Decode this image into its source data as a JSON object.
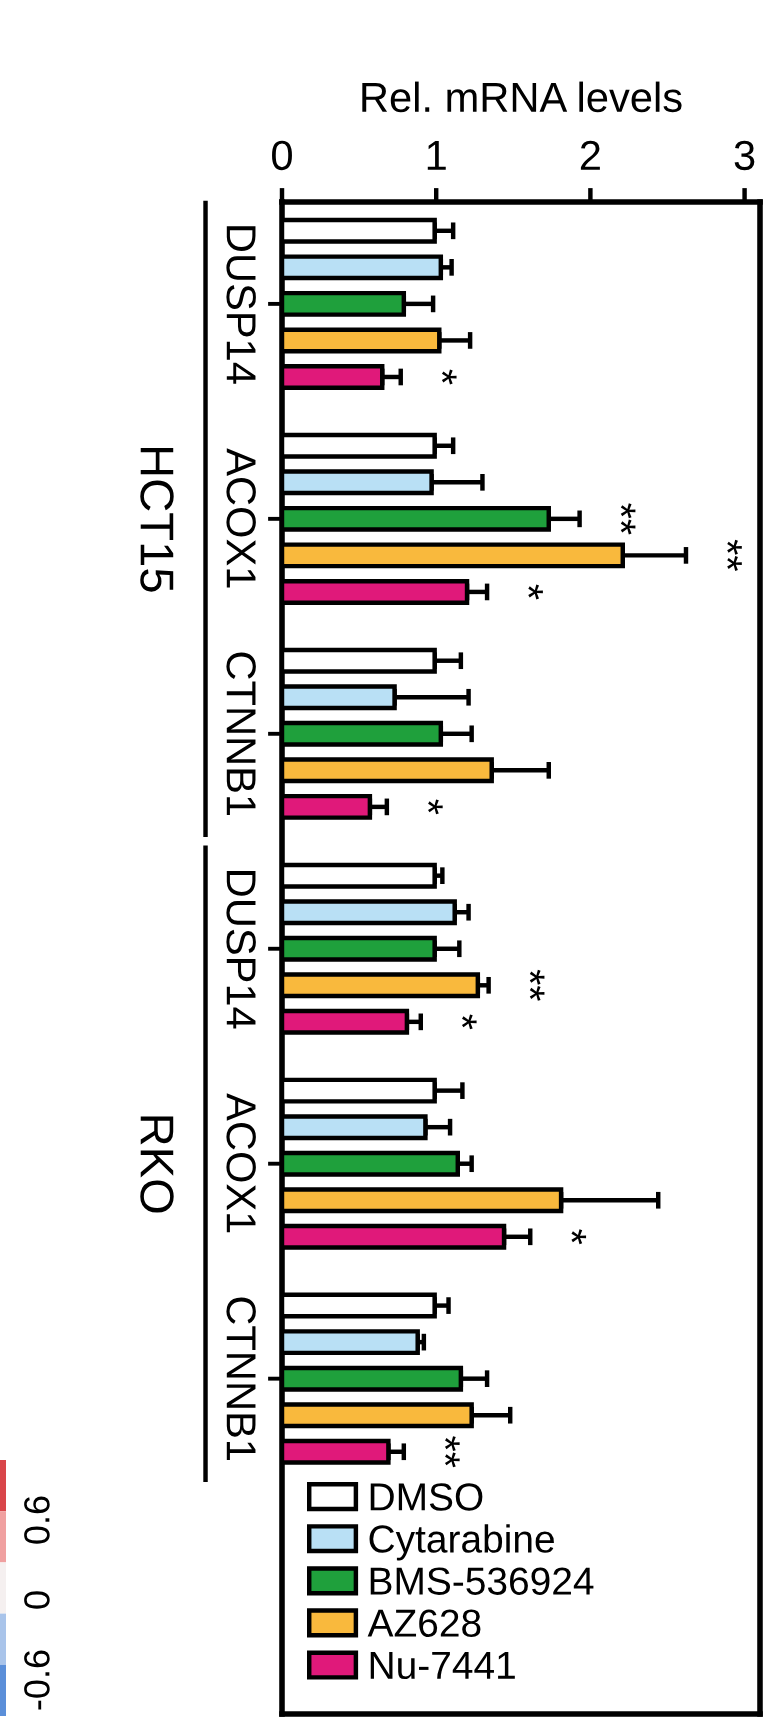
{
  "chart_data": {
    "type": "bar",
    "orientation": "horizontal",
    "xlabel": "Rel. mRNA levels",
    "categories": [
      "DUSP14",
      "ACOX1",
      "CTNNB1",
      "DUSP14",
      "ACOX1",
      "CTNNB1"
    ],
    "xlim": [
      0,
      3.1
    ],
    "xticks": [
      0,
      1,
      2,
      3
    ],
    "grid": false,
    "legend": "bottom left",
    "annotations": [
      "HCT15",
      "RKO",
      "0.6",
      "0",
      "-0.6"
    ],
    "series": [
      {
        "name": "DMSO",
        "color": "#ffffff",
        "values": [
          0.99,
          0.99,
          0.99,
          0.99,
          0.99,
          0.99
        ],
        "errors": [
          [
            0.99,
            1.11
          ],
          [
            0.99,
            1.11
          ],
          [
            0.99,
            1.16
          ],
          [
            0.99,
            1.04
          ],
          [
            0.99,
            1.17
          ],
          [
            0.99,
            1.08
          ]
        ]
      },
      {
        "name": "Cytarabine",
        "color": "#b9e0f5",
        "values": [
          1.03,
          0.97,
          0.73,
          1.12,
          0.93,
          0.88
        ],
        "errors": [
          [
            1.03,
            1.1
          ],
          [
            0.97,
            1.3
          ],
          [
            0.73,
            1.21
          ],
          [
            1.12,
            1.21
          ],
          [
            0.93,
            1.09
          ],
          [
            0.88,
            0.92
          ]
        ]
      },
      {
        "name": "BMS-536924",
        "color": "#1fa03c",
        "values": [
          0.79,
          1.73,
          1.03,
          0.99,
          1.14,
          1.16
        ],
        "errors": [
          [
            0.79,
            0.98
          ],
          [
            1.73,
            1.93
          ],
          [
            1.03,
            1.23
          ],
          [
            0.99,
            1.15
          ],
          [
            1.14,
            1.23
          ],
          [
            1.16,
            1.33
          ]
        ],
        "value_labels": [
          null,
          "**",
          null,
          null,
          null,
          null
        ]
      },
      {
        "name": "AZ628",
        "color": "#f9b93d",
        "values": [
          1.02,
          2.21,
          1.36,
          1.27,
          1.81,
          1.23
        ],
        "errors": [
          [
            1.02,
            1.22
          ],
          [
            2.21,
            2.62
          ],
          [
            1.36,
            1.73
          ],
          [
            1.27,
            1.34
          ],
          [
            1.81,
            2.44
          ],
          [
            1.23,
            1.48
          ]
        ],
        "value_labels": [
          null,
          "**",
          null,
          "**",
          null,
          null
        ]
      },
      {
        "name": "Nu-7441",
        "color": "#e0197a",
        "values": [
          0.65,
          1.2,
          0.57,
          0.81,
          1.44,
          0.69
        ],
        "errors": [
          [
            0.65,
            0.77
          ],
          [
            1.2,
            1.33
          ],
          [
            0.57,
            0.68
          ],
          [
            0.81,
            0.9
          ],
          [
            1.44,
            1.61
          ],
          [
            0.69,
            0.79
          ]
        ],
        "value_labels": [
          "*",
          "*",
          "*",
          "*",
          "*",
          "**"
        ]
      }
    ]
  }
}
